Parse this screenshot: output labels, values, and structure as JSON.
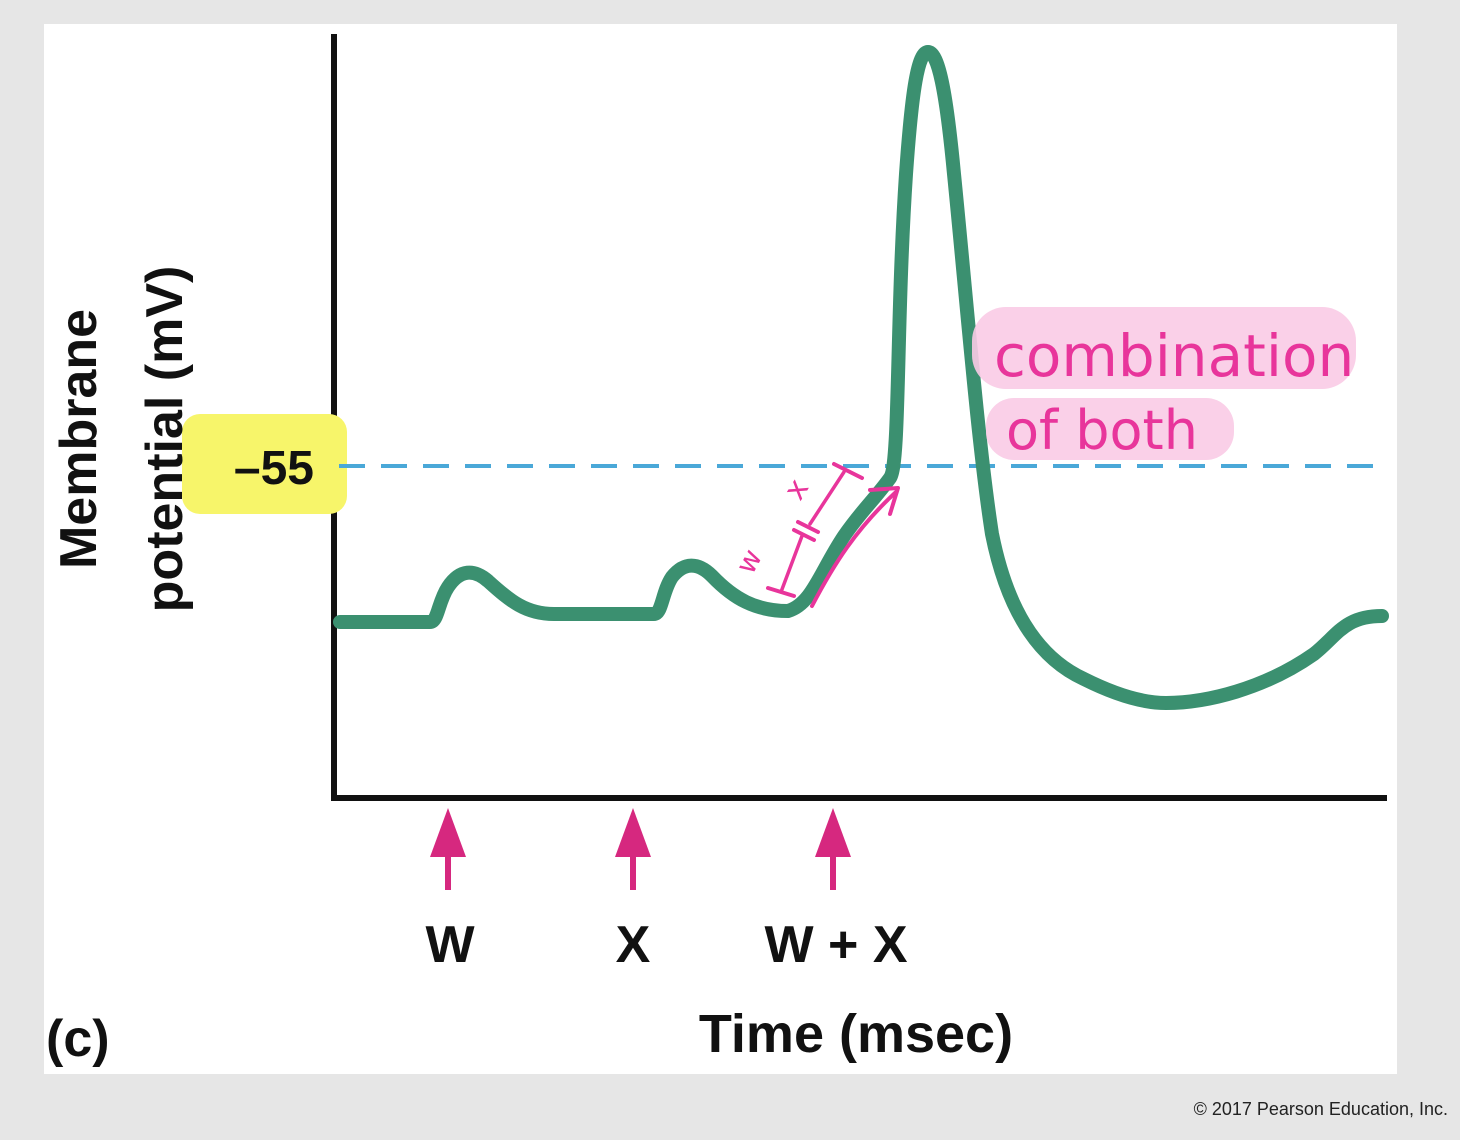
{
  "chart_data": {
    "type": "line",
    "title": "",
    "panel_label": "(c)",
    "xlabel": "Time (msec)",
    "ylabel_lines": [
      "Membrane",
      "potential (mV)"
    ],
    "y_ticks": [
      -55
    ],
    "threshold": {
      "value": -55,
      "label": "–55",
      "style": "dashed",
      "color": "#4aa8d8",
      "highlight": "#f7f56a"
    },
    "stimuli": [
      {
        "label": "W"
      },
      {
        "label": "X"
      },
      {
        "label": "W + X"
      }
    ],
    "series": [
      {
        "color": "#3b9070"
      }
    ],
    "annotations": {
      "callout_lines": [
        "combination",
        "of both"
      ],
      "segment_labels": [
        "w",
        "x"
      ],
      "pen_color": "#e8359b",
      "highlighter_color": "#f9cbe6"
    },
    "grid": false,
    "legend": "none",
    "colors": {
      "axis": "#111111",
      "arrow": "#d6287f",
      "card": "#ffffff",
      "background": "#e6e6e6"
    }
  },
  "footer": {
    "copyright": "© 2017 Pearson Education, Inc."
  }
}
